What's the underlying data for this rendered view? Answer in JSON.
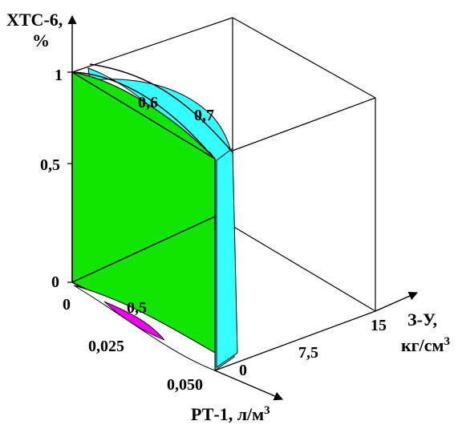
{
  "colors": {
    "front_face": "#11e600",
    "cyan_band": "#33ffff",
    "magenta_patch": "#ee00ee",
    "edge": "#000000",
    "background": "#ffffff"
  },
  "axes": {
    "vertical": {
      "label_line1": "ХТС-6,",
      "label_line2": "%",
      "ticks": [
        "0",
        "0,5",
        "1"
      ]
    },
    "front": {
      "label": "РТ-1, л/м",
      "label_sup": "3",
      "ticks": [
        "0",
        "0,025",
        "0,050"
      ]
    },
    "right": {
      "label_line1": "З-У,",
      "label_line2": "кг/см",
      "label_sup": "3",
      "ticks": [
        "0",
        "7,5",
        "15"
      ]
    }
  },
  "contour_labels": {
    "c06": "0,6",
    "c07": "0,7",
    "c05": "0,5"
  }
}
